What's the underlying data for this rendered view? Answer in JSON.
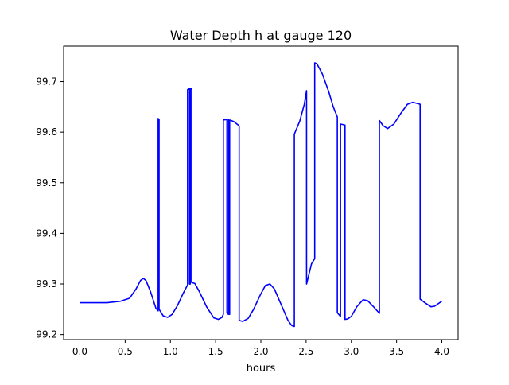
{
  "chart_data": {
    "type": "line",
    "title": "Water Depth h at gauge 120",
    "xlabel": "hours",
    "ylabel": "",
    "xlim": [
      -0.18,
      4.18
    ],
    "ylim": [
      99.19,
      99.77
    ],
    "grid": false,
    "xticks": [
      0,
      0.5,
      1,
      1.5,
      2,
      2.5,
      3,
      3.5,
      4
    ],
    "xtick_labels": [
      "0.0",
      "0.5",
      "1.0",
      "1.5",
      "2.0",
      "2.5",
      "3.0",
      "3.5",
      "4.0"
    ],
    "yticks": [
      99.2,
      99.3,
      99.4,
      99.5,
      99.6,
      99.7
    ],
    "ytick_labels": [
      "99.2",
      "99.3",
      "99.4",
      "99.5",
      "99.6",
      "99.7"
    ],
    "series": [
      {
        "color": "#0000ff",
        "points": [
          [
            0,
            99.263
          ],
          [
            0.3,
            99.263
          ],
          [
            0.45,
            99.266
          ],
          [
            0.55,
            99.272
          ],
          [
            0.62,
            99.29
          ],
          [
            0.67,
            99.307
          ],
          [
            0.7,
            99.311
          ],
          [
            0.73,
            99.307
          ],
          [
            0.78,
            99.285
          ],
          [
            0.84,
            99.252
          ],
          [
            0.865,
            99.247
          ],
          [
            0.865,
            99.627
          ],
          [
            0.875,
            99.625
          ],
          [
            0.875,
            99.25
          ],
          [
            0.92,
            99.237
          ],
          [
            0.97,
            99.234
          ],
          [
            1.02,
            99.24
          ],
          [
            1.08,
            99.258
          ],
          [
            1.14,
            99.281
          ],
          [
            1.19,
            99.298
          ],
          [
            1.19,
            99.684
          ],
          [
            1.21,
            99.686
          ],
          [
            1.21,
            99.3
          ],
          [
            1.22,
            99.3
          ],
          [
            1.22,
            99.686
          ],
          [
            1.235,
            99.686
          ],
          [
            1.235,
            99.303
          ],
          [
            1.27,
            99.301
          ],
          [
            1.32,
            99.285
          ],
          [
            1.4,
            99.255
          ],
          [
            1.48,
            99.233
          ],
          [
            1.53,
            99.23
          ],
          [
            1.57,
            99.234
          ],
          [
            1.585,
            99.24
          ],
          [
            1.585,
            99.624
          ],
          [
            1.625,
            99.625
          ],
          [
            1.625,
            99.244
          ],
          [
            1.64,
            99.24
          ],
          [
            1.64,
            99.625
          ],
          [
            1.65,
            99.623
          ],
          [
            1.65,
            99.24
          ],
          [
            1.655,
            99.24
          ],
          [
            1.655,
            99.624
          ],
          [
            1.7,
            99.621
          ],
          [
            1.75,
            99.614
          ],
          [
            1.76,
            99.612
          ],
          [
            1.76,
            99.228
          ],
          [
            1.8,
            99.226
          ],
          [
            1.86,
            99.232
          ],
          [
            1.92,
            99.25
          ],
          [
            1.99,
            99.277
          ],
          [
            2.05,
            99.297
          ],
          [
            2.1,
            99.3
          ],
          [
            2.15,
            99.29
          ],
          [
            2.22,
            99.261
          ],
          [
            2.3,
            99.228
          ],
          [
            2.34,
            99.218
          ],
          [
            2.37,
            99.216
          ],
          [
            2.37,
            99.596
          ],
          [
            2.43,
            99.622
          ],
          [
            2.48,
            99.655
          ],
          [
            2.505,
            99.682
          ],
          [
            2.505,
            99.3
          ],
          [
            2.53,
            99.318
          ],
          [
            2.56,
            99.34
          ],
          [
            2.595,
            99.35
          ],
          [
            2.595,
            99.737
          ],
          [
            2.62,
            99.735
          ],
          [
            2.68,
            99.715
          ],
          [
            2.75,
            99.68
          ],
          [
            2.8,
            99.65
          ],
          [
            2.845,
            99.63
          ],
          [
            2.845,
            99.243
          ],
          [
            2.86,
            99.24
          ],
          [
            2.88,
            99.236
          ],
          [
            2.88,
            99.616
          ],
          [
            2.93,
            99.614
          ],
          [
            2.93,
            99.23
          ],
          [
            2.96,
            99.231
          ],
          [
            3.0,
            99.236
          ],
          [
            3.06,
            99.255
          ],
          [
            3.13,
            99.269
          ],
          [
            3.18,
            99.267
          ],
          [
            3.24,
            99.256
          ],
          [
            3.3,
            99.244
          ],
          [
            3.31,
            99.242
          ],
          [
            3.31,
            99.623
          ],
          [
            3.35,
            99.613
          ],
          [
            3.4,
            99.607
          ],
          [
            3.47,
            99.616
          ],
          [
            3.55,
            99.638
          ],
          [
            3.62,
            99.655
          ],
          [
            3.68,
            99.659
          ],
          [
            3.74,
            99.656
          ],
          [
            3.76,
            99.655
          ],
          [
            3.76,
            99.27
          ],
          [
            3.82,
            99.262
          ],
          [
            3.88,
            99.255
          ],
          [
            3.92,
            99.256
          ],
          [
            4.0,
            99.266
          ]
        ]
      }
    ]
  }
}
